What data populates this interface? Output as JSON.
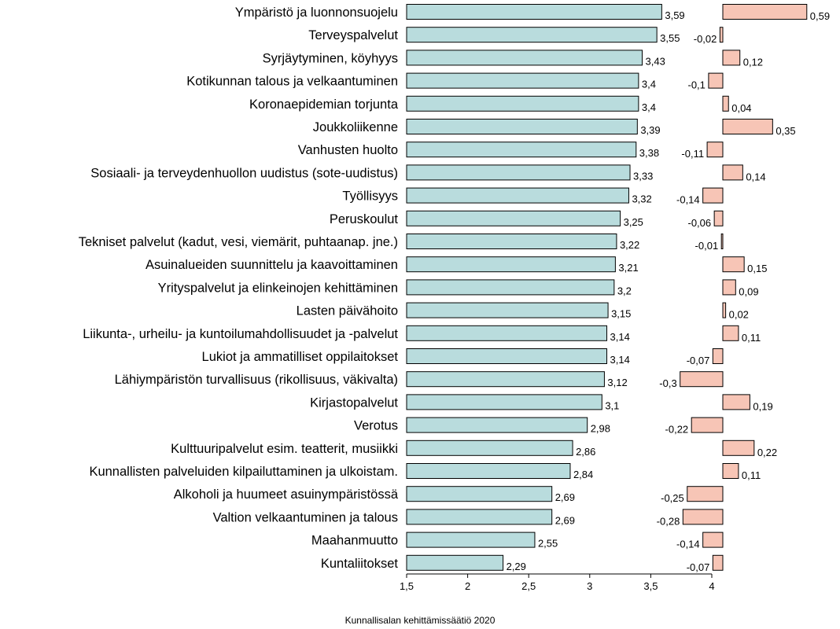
{
  "chart_data": {
    "type": "bar",
    "orientation": "horizontal",
    "categories": [
      "Ympäristö ja luonnonsuojelu",
      "Terveyspalvelut",
      "Syrjäytyminen, köyhyys",
      "Kotikunnan talous ja velkaantuminen",
      "Koronaepidemian torjunta",
      "Joukkoliikenne",
      "Vanhusten huolto",
      "Sosiaali- ja terveydenhuollon uudistus (sote-uudistus)",
      "Työllisyys",
      "Peruskoulut",
      "Tekniset palvelut (kadut, vesi, viemärit, puhtaanap. jne.)",
      "Asuinalueiden suunnittelu ja kaavoittaminen",
      "Yrityspalvelut ja elinkeinojen kehittäminen",
      "Lasten päivähoito",
      "Liikunta-, urheilu- ja kuntoilumahdollisuudet ja -palvelut",
      "Lukiot ja ammatilliset oppilaitokset",
      "Lähiympäristön turvallisuus (rikollisuus, väkivalta)",
      "Kirjastopalvelut",
      "Verotus",
      "Kulttuuripalvelut esim. teatterit, musiikki",
      "Kunnallisten palveluiden kilpailuttaminen ja ulkoistam.",
      "Alkoholi ja huumeet asuinympäristössä",
      "Valtion velkaantuminen ja talous",
      "Maahanmuutto",
      "Kuntaliitokset"
    ],
    "series": [
      {
        "values": [
          3.59,
          3.55,
          3.43,
          3.4,
          3.4,
          3.39,
          3.38,
          3.33,
          3.32,
          3.25,
          3.22,
          3.21,
          3.2,
          3.15,
          3.14,
          3.14,
          3.12,
          3.1,
          2.98,
          2.86,
          2.84,
          2.69,
          2.69,
          2.55,
          2.29
        ],
        "labels": [
          "3,59",
          "3,55",
          "3,43",
          "3,4",
          "3,4",
          "3,39",
          "3,38",
          "3,33",
          "3,32",
          "3,25",
          "3,22",
          "3,21",
          "3,2",
          "3,15",
          "3,14",
          "3,14",
          "3,12",
          "3,1",
          "2,98",
          "2,86",
          "2,84",
          "2,69",
          "2,69",
          "2,55",
          "2,29"
        ],
        "color": "#b9dcdd"
      },
      {
        "values": [
          0.59,
          -0.02,
          0.12,
          -0.1,
          0.04,
          0.35,
          -0.11,
          0.14,
          -0.14,
          -0.06,
          -0.01,
          0.15,
          0.09,
          0.02,
          0.11,
          -0.07,
          -0.3,
          0.19,
          -0.22,
          0.22,
          0.11,
          -0.25,
          -0.28,
          -0.14,
          -0.07
        ],
        "labels": [
          "0,59",
          "-0,02",
          "0,12",
          "-0,1",
          "0,04",
          "0,35",
          "-0,11",
          "0,14",
          "-0,14",
          "-0,06",
          "-0,01",
          "0,15",
          "0,09",
          "0,02",
          "0,11",
          "-0,07",
          "-0,3",
          "0,19",
          "-0,22",
          "0,22",
          "0,11",
          "-0,25",
          "-0,28",
          "-0,14",
          "-0,07"
        ],
        "color": "#f7c5b6"
      }
    ],
    "xlim": [
      1.5,
      4
    ],
    "xticks": [
      1.5,
      2,
      2.5,
      3,
      3.5,
      4
    ],
    "xtick_labels": [
      "1,5",
      "2",
      "2,5",
      "3",
      "3,5",
      "4"
    ],
    "title": "",
    "xlabel": "",
    "ylabel": "",
    "grid": false,
    "legend": "none",
    "source": "Kunnallisalan kehittämissäätiö 2020"
  }
}
